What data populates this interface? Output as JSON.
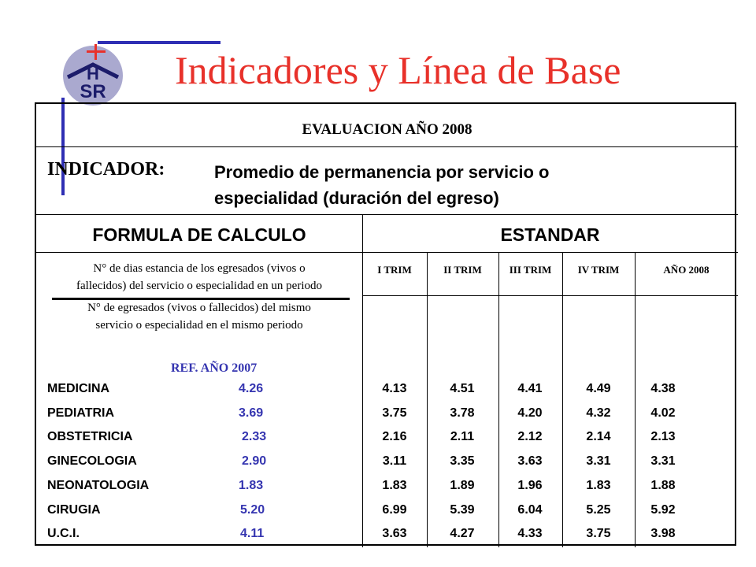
{
  "header": {
    "title": "Indicadores y Línea de Base",
    "logo_text": "HSR",
    "logo_icon": "hospital-logo"
  },
  "table": {
    "evaluation_title": "EVALUACION AÑO 2008",
    "indicator_label": "INDICADOR:",
    "indicator_line1": "Promedio de permanencia por servicio o",
    "indicator_line2": "especialidad (duración del egreso)",
    "formula_header": "FORMULA DE CALCULO",
    "standard_header": "ESTANDAR",
    "numerator_line1": "N° de dias estancia de los egresados (vivos o",
    "numerator_line2": "fallecidos) del servicio o especialidad en un periodo",
    "denominator_line1": "N° de egresados (vivos o fallecidos) del mismo",
    "denominator_line2": "servicio o especialidad en el mismo periodo",
    "ref_label": "REF. AÑO 2007",
    "period_headers": [
      "I TRIM",
      "II TRIM",
      "III TRIM",
      "IV TRIM",
      "AÑO 2008"
    ],
    "services": [
      {
        "name": "MEDICINA",
        "ref": "4.26",
        "values": [
          "4.13",
          "4.51",
          "4.41",
          "4.49",
          "4.38"
        ]
      },
      {
        "name": "PEDIATRIA",
        "ref": "3.69",
        "values": [
          "3.75",
          "3.78",
          "4.20",
          "4.32",
          "4.02"
        ]
      },
      {
        "name": "OBSTETRICIA",
        "ref": "2.33",
        "values": [
          "2.16",
          "2.11",
          "2.12",
          "2.14",
          "2.13"
        ]
      },
      {
        "name": "GINECOLOGIA",
        "ref": "2.90",
        "values": [
          "3.11",
          "3.35",
          "3.63",
          "3.31",
          "3.31"
        ]
      },
      {
        "name": "NEONATOLOGIA",
        "ref": "1.83",
        "values": [
          "1.83",
          "1.89",
          "1.96",
          "1.83",
          "1.88"
        ]
      },
      {
        "name": "CIRUGIA",
        "ref": "5.20",
        "values": [
          "6.99",
          "5.39",
          "6.04",
          "5.25",
          "5.92"
        ]
      },
      {
        "name": "U.C.I.",
        "ref": "4.11",
        "values": [
          "3.63",
          "4.27",
          "4.33",
          "3.75",
          "3.98"
        ]
      }
    ]
  },
  "colors": {
    "title": "#e8312a",
    "accent_bars": "#2f2fb4",
    "ref_values": "#3535b0",
    "logo_circle": "#aaa9cf"
  }
}
